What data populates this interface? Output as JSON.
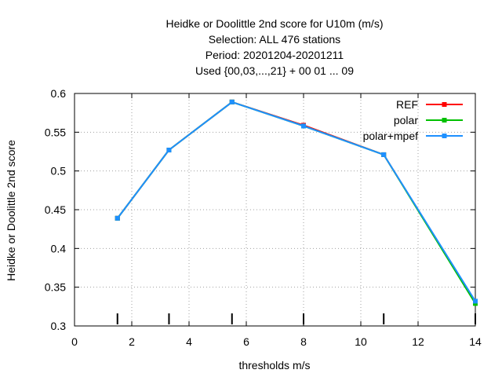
{
  "chart_data": {
    "type": "line",
    "title_lines": [
      "Heidke or Doolittle 2nd score  for U10m (m/s)",
      "Selection: ALL    476 stations",
      "Period: 20201204-20201211",
      "Used {00,03,...,21} + 00 01 ... 09"
    ],
    "xlabel": "thresholds m/s",
    "ylabel": "Heidke or Doolittle 2nd score",
    "xlim": [
      0,
      14
    ],
    "ylim": [
      0.3,
      0.6
    ],
    "x_ticks": [
      "0",
      "2",
      "4",
      "6",
      "8",
      "10",
      "12",
      "14"
    ],
    "y_ticks": [
      "0.3",
      "0.35",
      "0.4",
      "0.45",
      "0.5",
      "0.55",
      "0.6"
    ],
    "grid": true,
    "legend_position": "top-right",
    "threshold_markers": [
      1.5,
      3.3,
      5.5,
      8.0,
      10.8,
      14.0
    ],
    "x": [
      1.5,
      3.3,
      5.5,
      8.0,
      10.8,
      14.0
    ],
    "series": [
      {
        "name": "REF",
        "color": "#ff0000",
        "values": [
          0.439,
          0.527,
          0.589,
          0.559,
          0.521,
          0.331
        ]
      },
      {
        "name": "polar",
        "color": "#00c000",
        "values": [
          0.439,
          0.527,
          0.589,
          0.558,
          0.521,
          0.329
        ]
      },
      {
        "name": "polar+mpef",
        "color": "#1e90ff",
        "values": [
          0.439,
          0.527,
          0.589,
          0.558,
          0.521,
          0.332
        ]
      }
    ]
  }
}
